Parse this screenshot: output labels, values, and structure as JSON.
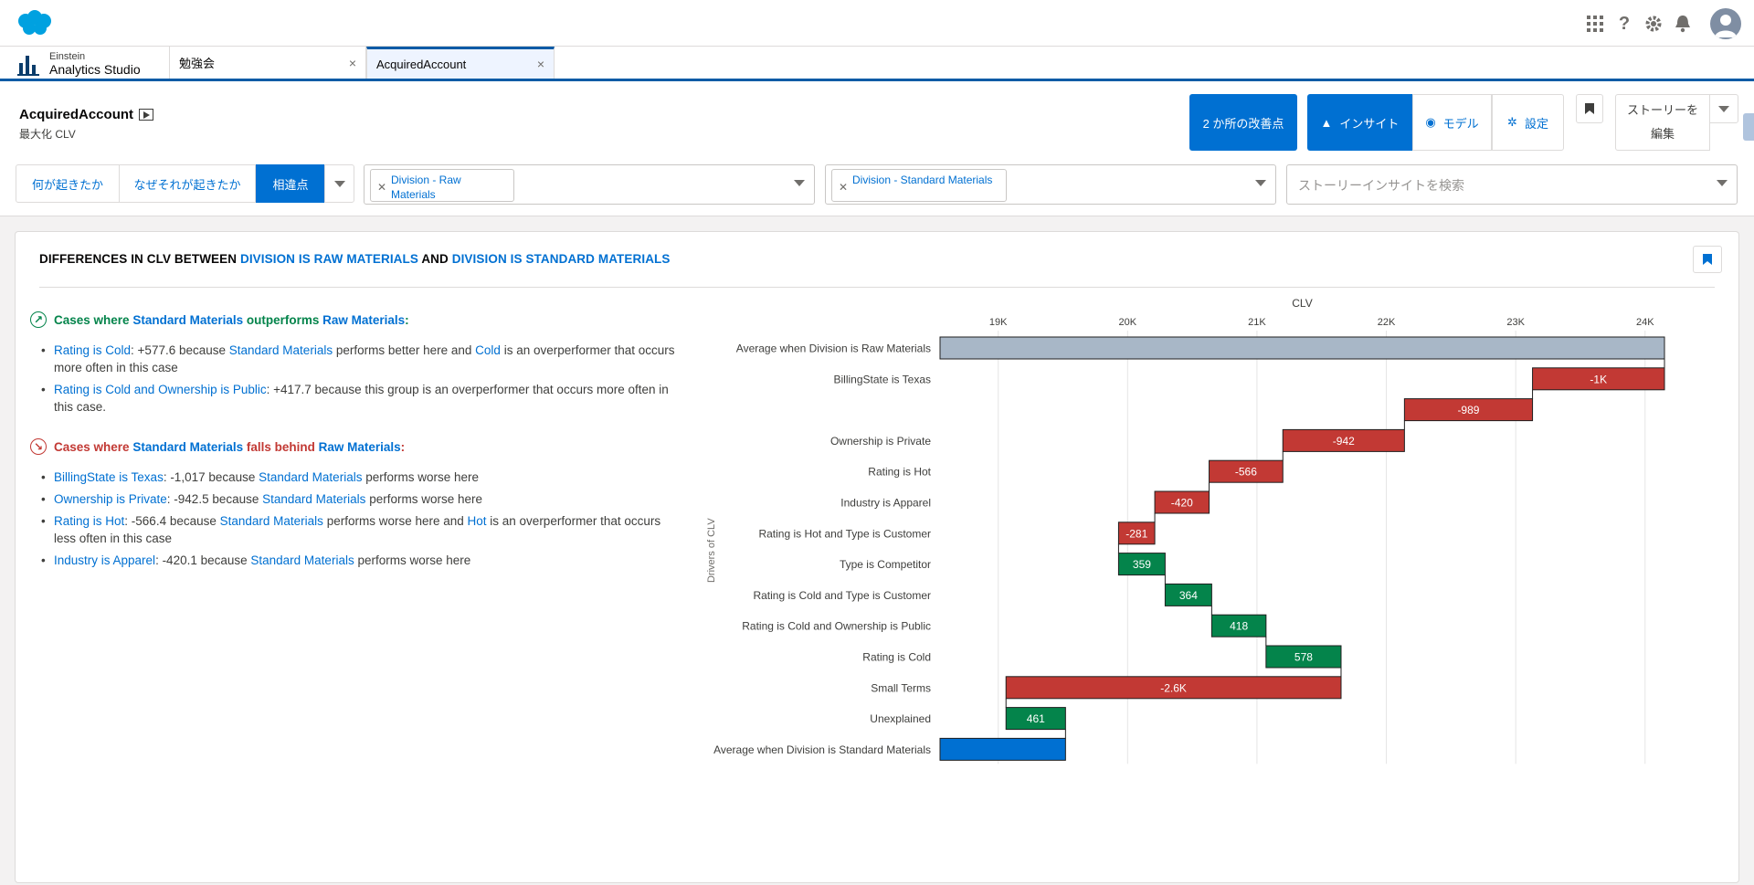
{
  "header": {
    "icons": [
      "app-launcher-icon",
      "help-icon",
      "setup-gear-icon",
      "notification-bell-icon",
      "user-avatar-icon"
    ]
  },
  "tabs": {
    "app_line1": "Einstein",
    "app_line2": "Analytics Studio",
    "items": [
      {
        "label": "勉強会",
        "close": "×"
      },
      {
        "label": "AcquiredAccount",
        "close": "×"
      }
    ]
  },
  "story": {
    "title": "AcquiredAccount",
    "subtitle": "最大化 CLV",
    "improvements_label": "2 か所の改善点",
    "insight_label": "インサイト",
    "model_label": "モデル",
    "settings_label": "設定",
    "edit_story_label": "ストーリーを編集",
    "nav": [
      "何が起きたか",
      "なぜそれが起きたか",
      "相違点"
    ],
    "filter1": "Division - Raw Materials",
    "filter2": "Division - Standard Materials",
    "search_placeholder": "ストーリーインサイトを検索"
  },
  "card": {
    "title_parts": [
      "DIFFERENCES IN CLV BETWEEN ",
      "DIVISION IS RAW MATERIALS",
      " AND ",
      "DIVISION IS STANDARD MATERIALS"
    ],
    "section1": {
      "p1": "Cases where ",
      "p2": "Standard Materials",
      "p3": " outperforms ",
      "p4": "Raw Materials",
      "p5": ":"
    },
    "section2": {
      "p1": "Cases where ",
      "p2": "Standard Materials",
      "p3": " falls behind ",
      "p4": "Raw Materials",
      "p5": ":"
    },
    "b1": {
      "a": "Rating is Cold",
      "b": ": +577.6 because ",
      "c": "Standard Materials",
      "d": " performs better here and ",
      "e": "Cold",
      "f": " is an overperformer that occurs more often in this case"
    },
    "b2": {
      "a": "Rating is Cold and Ownership is Public",
      "b": ": +417.7 because this group is an overperformer that occurs more often in this case."
    },
    "b3": {
      "a": "BillingState is Texas",
      "b": ": -1,017 because ",
      "c": "Standard Materials",
      "d": " performs worse here"
    },
    "b4": {
      "a": "Ownership is Private",
      "b": ": -942.5 because ",
      "c": "Standard Materials",
      "d": " performs worse here"
    },
    "b5": {
      "a": "Rating is Hot",
      "b": ": -566.4 because ",
      "c": "Standard Materials",
      "d": " performs worse here and ",
      "e": "Hot",
      "f": " is an overperformer that occurs less often in this case"
    },
    "b6": {
      "a": "Industry is Apparel",
      "b": ": -420.1 because ",
      "c": "Standard Materials",
      "d": " performs worse here"
    }
  },
  "chart_data": {
    "type": "bar",
    "subtype": "waterfall",
    "xlabel": "CLV",
    "ylabel": "Drivers of CLV",
    "xlim": [
      18550,
      24150
    ],
    "ticks": [
      19000,
      20000,
      21000,
      22000,
      23000,
      24000
    ],
    "tick_labels": [
      "19K",
      "20K",
      "21K",
      "22K",
      "23K",
      "24K"
    ],
    "grid": true,
    "rows": [
      {
        "label": "Average when Division is Raw Materials",
        "kind": "total",
        "start": 18550,
        "end": 24150,
        "text": ""
      },
      {
        "label": "BillingState is Texas",
        "kind": "neg",
        "start": 24150,
        "end": 23130,
        "text": "-1K"
      },
      {
        "label": "",
        "kind": "neg",
        "start": 23130,
        "end": 22140,
        "text": "-989"
      },
      {
        "label": "Ownership is Private",
        "kind": "neg",
        "start": 22140,
        "end": 21200,
        "text": "-942"
      },
      {
        "label": "Rating is Hot",
        "kind": "neg",
        "start": 21200,
        "end": 20630,
        "text": "-566"
      },
      {
        "label": "Industry is Apparel",
        "kind": "neg",
        "start": 20630,
        "end": 20210,
        "text": "-420"
      },
      {
        "label": "Rating is Hot and Type is Customer",
        "kind": "neg",
        "start": 20210,
        "end": 19930,
        "text": "-281"
      },
      {
        "label": "Type is Competitor",
        "kind": "pos",
        "start": 19930,
        "end": 20290,
        "text": "359"
      },
      {
        "label": "Rating is Cold and Type is Customer",
        "kind": "pos",
        "start": 20290,
        "end": 20650,
        "text": "364"
      },
      {
        "label": "Rating is Cold and Ownership is Public",
        "kind": "pos",
        "start": 20650,
        "end": 21070,
        "text": "418"
      },
      {
        "label": "Rating is Cold",
        "kind": "pos",
        "start": 21070,
        "end": 21650,
        "text": "578"
      },
      {
        "label": "Small Terms",
        "kind": "neg",
        "start": 21650,
        "end": 19060,
        "text": "-2.6K"
      },
      {
        "label": "Unexplained",
        "kind": "pos",
        "start": 19060,
        "end": 19520,
        "text": "461"
      },
      {
        "label": "Average when Division is Standard Materials",
        "kind": "final",
        "start": 18550,
        "end": 19520,
        "text": ""
      }
    ],
    "colors": {
      "total": "#a8b7c7",
      "neg": "#c23934",
      "pos": "#04844b",
      "final": "#0070d2"
    }
  }
}
